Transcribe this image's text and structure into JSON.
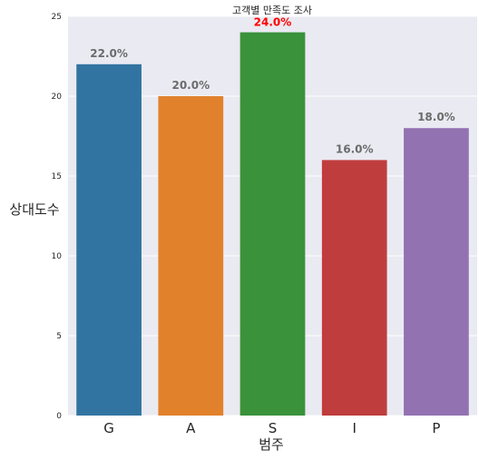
{
  "chart_data": {
    "type": "bar",
    "title": "고객별 만족도 조사",
    "xlabel": "범주",
    "ylabel": "상대도수",
    "categories": [
      "G",
      "A",
      "S",
      "I",
      "P"
    ],
    "values": [
      22,
      20,
      24,
      16,
      18
    ],
    "data_labels": [
      "22.0%",
      "20.0%",
      "24.0%",
      "16.0%",
      "18.0%"
    ],
    "highlight_index": 2,
    "colors": [
      "#3274a1",
      "#e1812c",
      "#3a923a",
      "#c03d3e",
      "#9372b2"
    ],
    "label_color": "#6b6b6b",
    "highlight_label_color": "#ff0000",
    "background": "#eaeaf2",
    "grid": true,
    "ylim": [
      0,
      25
    ],
    "yticks": [
      0,
      5,
      10,
      15,
      20,
      25
    ]
  }
}
